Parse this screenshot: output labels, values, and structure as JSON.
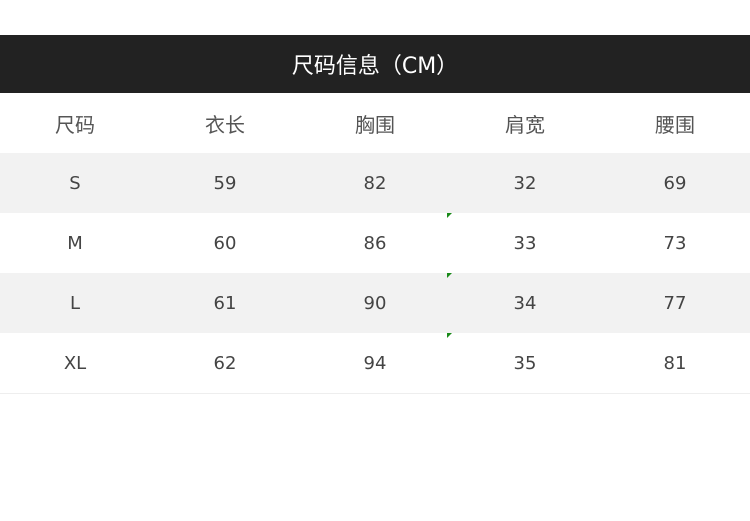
{
  "title": "尺码信息（CM）",
  "headers": [
    "尺码",
    "衣长",
    "胸围",
    "肩宽",
    "腰围"
  ],
  "rows": [
    [
      "S",
      "59",
      "82",
      "32",
      "69"
    ],
    [
      "M",
      "60",
      "86",
      "33",
      "73"
    ],
    [
      "L",
      "61",
      "90",
      "34",
      "77"
    ],
    [
      "XL",
      "62",
      "94",
      "35",
      "81"
    ]
  ],
  "colors": {
    "title_bg": "#222222",
    "stripe": "#f2f2f2",
    "marker": "#1a8a1a"
  }
}
